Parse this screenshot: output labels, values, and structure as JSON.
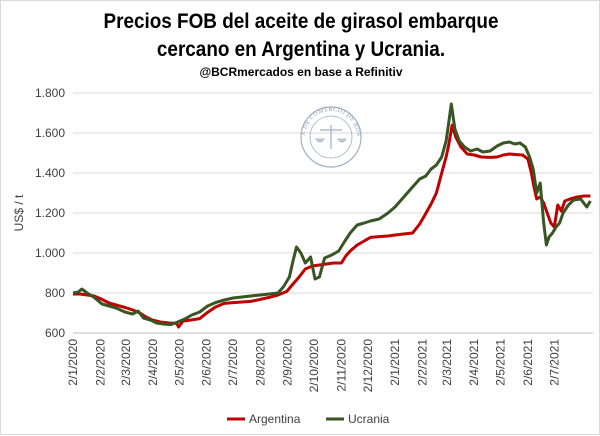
{
  "chart_data": {
    "type": "line",
    "title": "Precios FOB del aceite de girasol embarque cercano en Argentina y Ucrania.",
    "title_line1": "Precios FOB del aceite de girasol embarque",
    "title_line2": "cercano en Argentina y Ucrania.",
    "subtitle": "@BCRmercados en base a Refinitiv",
    "xlabel": "",
    "ylabel": "US$ / t",
    "ylim": [
      600,
      1800
    ],
    "yticks": [
      600,
      800,
      1000,
      1200,
      1400,
      1600,
      1800
    ],
    "ytick_labels": [
      "600",
      "800",
      "1.000",
      "1.200",
      "1.400",
      "1.600",
      "1.800"
    ],
    "xlim": [
      "2020-01-02",
      "2021-08-15"
    ],
    "xticks": [
      "2020-01-02",
      "2020-02-02",
      "2020-03-02",
      "2020-04-02",
      "2020-05-02",
      "2020-06-02",
      "2020-07-02",
      "2020-08-02",
      "2020-09-02",
      "2020-10-02",
      "2020-11-02",
      "2020-12-02",
      "2021-01-02",
      "2021-02-02",
      "2021-03-02",
      "2021-04-02",
      "2021-05-02",
      "2021-06-02",
      "2021-07-02"
    ],
    "xtick_labels": [
      "2/1/2020",
      "2/2/2020",
      "2/3/2020",
      "2/4/2020",
      "2/5/2020",
      "2/6/2020",
      "2/7/2020",
      "2/8/2020",
      "2/9/2020",
      "2/10/2020",
      "2/11/2020",
      "2/12/2020",
      "2/1/2021",
      "2/2/2021",
      "2/3/2021",
      "2/4/2021",
      "2/5/2021",
      "2/6/2021",
      "2/7/2021"
    ],
    "grid": "horizontal",
    "legend_position": "bottom",
    "series": [
      {
        "name": "Argentina",
        "color": "#c00000",
        "points": [
          [
            "2020-01-02",
            795
          ],
          [
            "2020-01-10",
            795
          ],
          [
            "2020-01-18",
            790
          ],
          [
            "2020-01-26",
            785
          ],
          [
            "2020-02-03",
            770
          ],
          [
            "2020-02-12",
            750
          ],
          [
            "2020-02-20",
            740
          ],
          [
            "2020-03-01",
            728
          ],
          [
            "2020-03-10",
            715
          ],
          [
            "2020-03-18",
            700
          ],
          [
            "2020-03-25",
            680
          ],
          [
            "2020-04-01",
            665
          ],
          [
            "2020-04-10",
            655
          ],
          [
            "2020-04-20",
            650
          ],
          [
            "2020-04-29",
            648
          ],
          [
            "2020-05-01",
            630
          ],
          [
            "2020-05-06",
            660
          ],
          [
            "2020-05-15",
            665
          ],
          [
            "2020-05-25",
            672
          ],
          [
            "2020-06-02",
            700
          ],
          [
            "2020-06-12",
            730
          ],
          [
            "2020-06-22",
            748
          ],
          [
            "2020-07-02",
            752
          ],
          [
            "2020-07-12",
            755
          ],
          [
            "2020-07-22",
            758
          ],
          [
            "2020-08-02",
            768
          ],
          [
            "2020-08-12",
            778
          ],
          [
            "2020-08-22",
            790
          ],
          [
            "2020-09-01",
            808
          ],
          [
            "2020-09-08",
            845
          ],
          [
            "2020-09-15",
            880
          ],
          [
            "2020-09-22",
            920
          ],
          [
            "2020-09-30",
            935
          ],
          [
            "2020-10-08",
            940
          ],
          [
            "2020-10-16",
            945
          ],
          [
            "2020-10-24",
            950
          ],
          [
            "2020-11-02",
            950
          ],
          [
            "2020-11-07",
            985
          ],
          [
            "2020-11-12",
            1010
          ],
          [
            "2020-11-20",
            1040
          ],
          [
            "2020-11-28",
            1060
          ],
          [
            "2020-12-05",
            1078
          ],
          [
            "2020-12-15",
            1082
          ],
          [
            "2020-12-25",
            1085
          ],
          [
            "2021-01-02",
            1090
          ],
          [
            "2021-01-12",
            1095
          ],
          [
            "2021-01-22",
            1100
          ],
          [
            "2021-01-30",
            1145
          ],
          [
            "2021-02-05",
            1190
          ],
          [
            "2021-02-12",
            1245
          ],
          [
            "2021-02-18",
            1300
          ],
          [
            "2021-02-24",
            1400
          ],
          [
            "2021-03-01",
            1480
          ],
          [
            "2021-03-04",
            1540
          ],
          [
            "2021-03-08",
            1640
          ],
          [
            "2021-03-12",
            1580
          ],
          [
            "2021-03-18",
            1530
          ],
          [
            "2021-03-25",
            1495
          ],
          [
            "2021-04-02",
            1490
          ],
          [
            "2021-04-10",
            1480
          ],
          [
            "2021-04-20",
            1478
          ],
          [
            "2021-04-28",
            1480
          ],
          [
            "2021-05-05",
            1490
          ],
          [
            "2021-05-12",
            1495
          ],
          [
            "2021-05-20",
            1492
          ],
          [
            "2021-05-27",
            1490
          ],
          [
            "2021-06-02",
            1470
          ],
          [
            "2021-06-06",
            1400
          ],
          [
            "2021-06-09",
            1330
          ],
          [
            "2021-06-12",
            1270
          ],
          [
            "2021-06-16",
            1280
          ],
          [
            "2021-06-20",
            1250
          ],
          [
            "2021-06-24",
            1200
          ],
          [
            "2021-06-28",
            1150
          ],
          [
            "2021-07-02",
            1130
          ],
          [
            "2021-07-06",
            1240
          ],
          [
            "2021-07-10",
            1210
          ],
          [
            "2021-07-14",
            1260
          ],
          [
            "2021-07-20",
            1270
          ],
          [
            "2021-07-28",
            1280
          ],
          [
            "2021-08-05",
            1285
          ],
          [
            "2021-08-12",
            1285
          ]
        ]
      },
      {
        "name": "Ucrania",
        "color": "#375623",
        "points": [
          [
            "2020-01-02",
            800
          ],
          [
            "2020-01-08",
            805
          ],
          [
            "2020-01-12",
            820
          ],
          [
            "2020-01-18",
            800
          ],
          [
            "2020-01-26",
            778
          ],
          [
            "2020-02-04",
            745
          ],
          [
            "2020-02-12",
            735
          ],
          [
            "2020-02-20",
            725
          ],
          [
            "2020-03-01",
            705
          ],
          [
            "2020-03-10",
            695
          ],
          [
            "2020-03-16",
            710
          ],
          [
            "2020-03-22",
            675
          ],
          [
            "2020-03-30",
            665
          ],
          [
            "2020-04-06",
            650
          ],
          [
            "2020-04-14",
            645
          ],
          [
            "2020-04-22",
            642
          ],
          [
            "2020-04-30",
            655
          ],
          [
            "2020-05-08",
            670
          ],
          [
            "2020-05-16",
            690
          ],
          [
            "2020-05-25",
            705
          ],
          [
            "2020-06-03",
            735
          ],
          [
            "2020-06-12",
            752
          ],
          [
            "2020-06-22",
            765
          ],
          [
            "2020-07-02",
            775
          ],
          [
            "2020-07-12",
            780
          ],
          [
            "2020-07-22",
            785
          ],
          [
            "2020-08-02",
            790
          ],
          [
            "2020-08-12",
            795
          ],
          [
            "2020-08-22",
            800
          ],
          [
            "2020-08-28",
            830
          ],
          [
            "2020-09-04",
            880
          ],
          [
            "2020-09-08",
            960
          ],
          [
            "2020-09-12",
            1030
          ],
          [
            "2020-09-17",
            1000
          ],
          [
            "2020-09-22",
            950
          ],
          [
            "2020-09-28",
            980
          ],
          [
            "2020-10-03",
            870
          ],
          [
            "2020-10-08",
            880
          ],
          [
            "2020-10-14",
            975
          ],
          [
            "2020-10-22",
            990
          ],
          [
            "2020-10-30",
            1010
          ],
          [
            "2020-11-06",
            1060
          ],
          [
            "2020-11-12",
            1100
          ],
          [
            "2020-11-20",
            1140
          ],
          [
            "2020-11-28",
            1150
          ],
          [
            "2020-12-05",
            1160
          ],
          [
            "2020-12-15",
            1170
          ],
          [
            "2020-12-25",
            1200
          ],
          [
            "2021-01-02",
            1230
          ],
          [
            "2021-01-12",
            1280
          ],
          [
            "2021-01-22",
            1330
          ],
          [
            "2021-01-30",
            1370
          ],
          [
            "2021-02-06",
            1385
          ],
          [
            "2021-02-12",
            1420
          ],
          [
            "2021-02-18",
            1440
          ],
          [
            "2021-02-24",
            1480
          ],
          [
            "2021-03-01",
            1560
          ],
          [
            "2021-03-04",
            1650
          ],
          [
            "2021-03-07",
            1745
          ],
          [
            "2021-03-11",
            1620
          ],
          [
            "2021-03-16",
            1560
          ],
          [
            "2021-03-22",
            1530
          ],
          [
            "2021-03-29",
            1510
          ],
          [
            "2021-04-05",
            1520
          ],
          [
            "2021-04-12",
            1505
          ],
          [
            "2021-04-20",
            1510
          ],
          [
            "2021-04-28",
            1535
          ],
          [
            "2021-05-05",
            1550
          ],
          [
            "2021-05-12",
            1555
          ],
          [
            "2021-05-18",
            1545
          ],
          [
            "2021-05-24",
            1550
          ],
          [
            "2021-05-30",
            1530
          ],
          [
            "2021-06-04",
            1480
          ],
          [
            "2021-06-08",
            1420
          ],
          [
            "2021-06-12",
            1300
          ],
          [
            "2021-06-16",
            1350
          ],
          [
            "2021-06-20",
            1150
          ],
          [
            "2021-06-23",
            1040
          ],
          [
            "2021-06-26",
            1080
          ],
          [
            "2021-06-30",
            1100
          ],
          [
            "2021-07-04",
            1130
          ],
          [
            "2021-07-08",
            1150
          ],
          [
            "2021-07-12",
            1200
          ],
          [
            "2021-07-18",
            1240
          ],
          [
            "2021-07-24",
            1265
          ],
          [
            "2021-08-01",
            1270
          ],
          [
            "2021-08-08",
            1230
          ],
          [
            "2021-08-12",
            1260
          ]
        ]
      }
    ],
    "watermark_text": "BOLSA DE COMERCIO DE ROSARIO"
  }
}
